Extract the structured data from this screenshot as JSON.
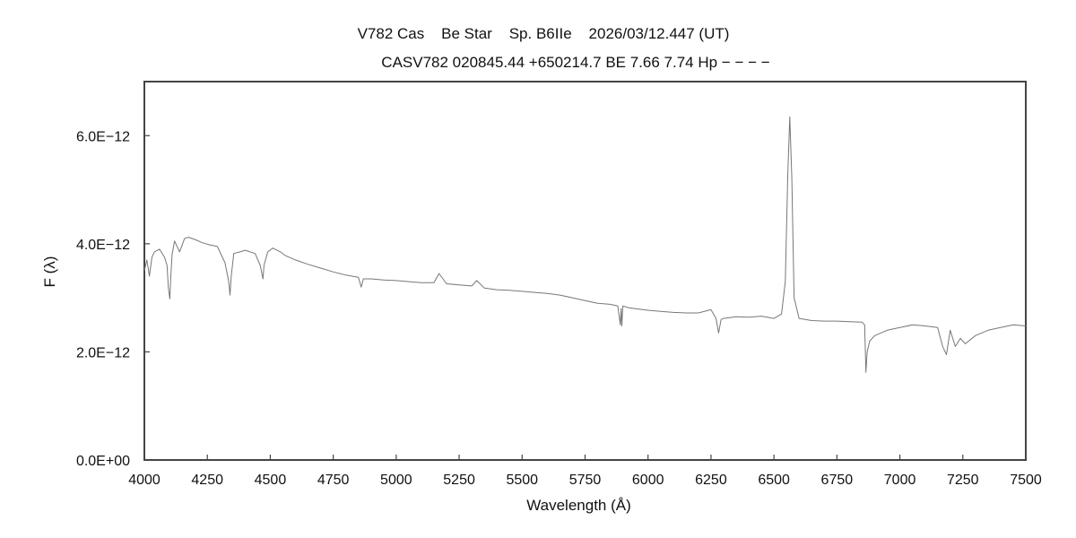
{
  "chart_data": {
    "type": "line",
    "title": "V782 Cas    Be Star    Sp. B6IIe    2026/03/12.447 (UT)",
    "subtitle": "CASV782 020845.44 +650214.7 BE 7.66 7.74 Hp − − − −",
    "xlabel": "Wavelength (Å)",
    "ylabel": "F (λ)",
    "xlim": [
      4000,
      7500
    ],
    "ylim": [
      0,
      7e-12
    ],
    "x_ticks": [
      4000,
      4250,
      4500,
      4750,
      5000,
      5250,
      5500,
      5750,
      6000,
      6250,
      6500,
      6750,
      7000,
      7250,
      7500
    ],
    "x_tick_labels": [
      "4000",
      "4250",
      "4500",
      "4750",
      "5000",
      "5250",
      "5500",
      "5750",
      "6000",
      "6250",
      "6500",
      "6750",
      "7000",
      "7250",
      "7500"
    ],
    "y_ticks": [
      0,
      2e-12,
      4e-12,
      6e-12
    ],
    "y_tick_labels": [
      "0.0E+00",
      "2.0E−12",
      "4.0E−12",
      "6.0E−12"
    ],
    "grid": false,
    "line_color": "#777777",
    "series": [
      {
        "x": [
          4000,
          4010,
          4020,
          4030,
          4040,
          4060,
          4080,
          4090,
          4095,
          4101,
          4105,
          4110,
          4120,
          4140,
          4160,
          4175,
          4200,
          4230,
          4260,
          4290,
          4320,
          4335,
          4340,
          4345,
          4355,
          4380,
          4400,
          4440,
          4460,
          4471,
          4475,
          4490,
          4510,
          4540,
          4560,
          4600,
          4650,
          4700,
          4750,
          4800,
          4850,
          4861,
          4870,
          4900,
          4950,
          5000,
          5050,
          5100,
          5150,
          5170,
          5200,
          5250,
          5300,
          5320,
          5350,
          5400,
          5450,
          5500,
          5550,
          5600,
          5650,
          5700,
          5750,
          5800,
          5850,
          5880,
          5890,
          5893,
          5896,
          5900,
          5920,
          5950,
          6000,
          6050,
          6100,
          6150,
          6200,
          6250,
          6270,
          6280,
          6290,
          6300,
          6350,
          6400,
          6450,
          6500,
          6530,
          6545,
          6555,
          6563,
          6571,
          6580,
          6600,
          6650,
          6700,
          6750,
          6800,
          6850,
          6860,
          6865,
          6870,
          6880,
          6900,
          6950,
          7000,
          7050,
          7100,
          7150,
          7170,
          7185,
          7200,
          7220,
          7240,
          7260,
          7300,
          7350,
          7400,
          7450,
          7500
        ],
        "y": [
          3.5e-12,
          3.7e-12,
          3.4e-12,
          3.75e-12,
          3.85e-12,
          3.9e-12,
          3.75e-12,
          3.6e-12,
          3.2e-12,
          2.98e-12,
          3.4e-12,
          3.8e-12,
          4.05e-12,
          3.85e-12,
          4.1e-12,
          4.12e-12,
          4.08e-12,
          4.02e-12,
          3.98e-12,
          3.95e-12,
          3.65e-12,
          3.3e-12,
          3.05e-12,
          3.4e-12,
          3.82e-12,
          3.85e-12,
          3.88e-12,
          3.82e-12,
          3.6e-12,
          3.35e-12,
          3.6e-12,
          3.85e-12,
          3.92e-12,
          3.85e-12,
          3.78e-12,
          3.7e-12,
          3.62e-12,
          3.55e-12,
          3.48e-12,
          3.42e-12,
          3.38e-12,
          3.2e-12,
          3.35e-12,
          3.35e-12,
          3.33e-12,
          3.32e-12,
          3.3e-12,
          3.28e-12,
          3.28e-12,
          3.45e-12,
          3.26e-12,
          3.24e-12,
          3.22e-12,
          3.32e-12,
          3.18e-12,
          3.15e-12,
          3.14e-12,
          3.12e-12,
          3.1e-12,
          3.08e-12,
          3.05e-12,
          3e-12,
          2.95e-12,
          2.9e-12,
          2.88e-12,
          2.85e-12,
          2.5e-12,
          2.8e-12,
          2.48e-12,
          2.85e-12,
          2.82e-12,
          2.8e-12,
          2.77e-12,
          2.75e-12,
          2.73e-12,
          2.72e-12,
          2.72e-12,
          2.78e-12,
          2.62e-12,
          2.35e-12,
          2.6e-12,
          2.62e-12,
          2.65e-12,
          2.64e-12,
          2.66e-12,
          2.62e-12,
          2.7e-12,
          3.3e-12,
          5.3e-12,
          6.35e-12,
          5.2e-12,
          3e-12,
          2.62e-12,
          2.58e-12,
          2.57e-12,
          2.57e-12,
          2.56e-12,
          2.55e-12,
          2.5e-12,
          1.62e-12,
          2e-12,
          2.2e-12,
          2.3e-12,
          2.4e-12,
          2.45e-12,
          2.5e-12,
          2.48e-12,
          2.45e-12,
          2.1e-12,
          1.95e-12,
          2.4e-12,
          2.1e-12,
          2.25e-12,
          2.15e-12,
          2.3e-12,
          2.4e-12,
          2.45e-12,
          2.5e-12,
          2.48e-12
        ]
      }
    ]
  }
}
